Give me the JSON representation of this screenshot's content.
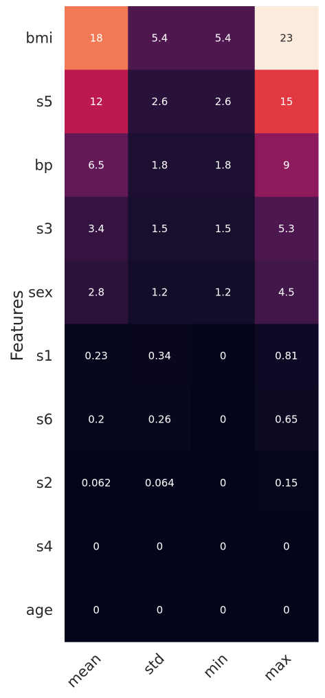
{
  "chart_data": {
    "type": "heatmap",
    "title": "",
    "xlabel": "",
    "ylabel": "Features",
    "x_categories": [
      "mean",
      "std",
      "min",
      "max"
    ],
    "y_categories": [
      "bmi",
      "s5",
      "bp",
      "s3",
      "sex",
      "s1",
      "s6",
      "s2",
      "s4",
      "age"
    ],
    "values": [
      [
        18,
        5.4,
        5.4,
        23
      ],
      [
        12,
        2.6,
        2.6,
        15
      ],
      [
        6.5,
        1.8,
        1.8,
        9
      ],
      [
        3.4,
        1.5,
        1.5,
        5.3
      ],
      [
        2.8,
        1.2,
        1.2,
        4.5
      ],
      [
        0.23,
        0.34,
        0,
        0.81
      ],
      [
        0.2,
        0.26,
        0,
        0.65
      ],
      [
        0.062,
        0.064,
        0,
        0.15
      ],
      [
        0,
        0,
        0,
        0
      ],
      [
        0,
        0,
        0,
        0
      ]
    ],
    "colormap": "rocket",
    "vmin": 0,
    "vmax": 23,
    "annotated": true,
    "colorbar": false,
    "x_tick_rotation": 45
  }
}
